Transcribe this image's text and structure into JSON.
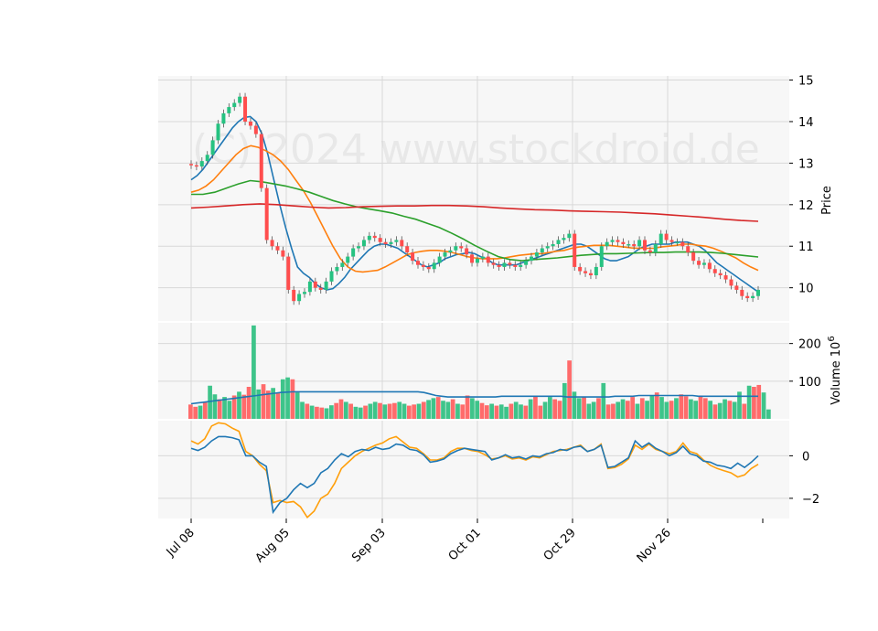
{
  "watermark": "(C) 2024 www.stockdroid.de",
  "chart_data": {
    "type": "candlestick",
    "date_ticks": [
      "Jul 08",
      "Aug 05",
      "Sep 03",
      "Oct 01",
      "Oct 29",
      "Nov 26"
    ],
    "price_panel": {
      "ylabel": "Price",
      "yticks": [
        10,
        11,
        12,
        13,
        14,
        15
      ],
      "ylim": [
        9.2,
        15.1
      ],
      "close": [
        12.95,
        12.92,
        13.05,
        13.2,
        13.55,
        13.95,
        14.2,
        14.35,
        14.45,
        14.6,
        14.0,
        13.9,
        13.7,
        12.4,
        11.15,
        11.0,
        10.9,
        10.75,
        9.95,
        9.68,
        9.85,
        9.9,
        10.15,
        10.0,
        9.95,
        10.15,
        10.4,
        10.5,
        10.6,
        10.75,
        10.95,
        11.0,
        11.15,
        11.25,
        11.2,
        11.1,
        11.05,
        11.1,
        11.15,
        11.0,
        10.85,
        10.65,
        10.55,
        10.5,
        10.45,
        10.6,
        10.75,
        10.85,
        10.9,
        11.0,
        10.95,
        10.8,
        10.6,
        10.7,
        10.75,
        10.6,
        10.55,
        10.5,
        10.6,
        10.55,
        10.5,
        10.55,
        10.65,
        10.75,
        10.85,
        10.95,
        11.0,
        11.05,
        11.15,
        11.2,
        11.3,
        10.5,
        10.4,
        10.35,
        10.3,
        10.5,
        11.0,
        11.1,
        11.15,
        11.1,
        11.05,
        11.05,
        11.0,
        11.15,
        10.9,
        10.85,
        11.05,
        11.3,
        11.15,
        11.1,
        11.1,
        11.0,
        10.85,
        10.65,
        10.55,
        10.6,
        10.45,
        10.35,
        10.3,
        10.2,
        10.05,
        9.95,
        9.8,
        9.75,
        9.8,
        9.95
      ],
      "overlays": [
        {
          "color": "#1f77b4",
          "values": [
            12.6,
            12.7,
            12.85,
            13.05,
            13.25,
            13.45,
            13.65,
            13.85,
            14.0,
            14.1,
            14.12,
            14.0,
            13.7,
            13.2,
            12.6,
            12.0,
            11.45,
            10.95,
            10.5,
            10.35,
            10.25,
            10.1,
            10.0,
            9.95,
            9.98,
            10.1,
            10.25,
            10.45,
            10.6,
            10.75,
            10.9,
            11.0,
            11.05,
            11.05,
            11.0,
            10.95,
            10.85,
            10.75,
            10.65,
            10.55,
            10.5,
            10.55,
            10.6,
            10.7,
            10.75,
            10.8,
            10.82,
            10.85,
            10.82,
            10.75,
            10.7,
            10.6,
            10.55,
            10.55,
            10.55,
            10.55,
            10.6,
            10.65,
            10.7,
            10.75,
            10.8,
            10.85,
            10.9,
            10.95,
            11.0,
            11.05,
            11.05,
            11.0,
            10.9,
            10.8,
            10.7,
            10.65,
            10.65,
            10.7,
            10.75,
            10.85,
            10.95,
            11.0,
            11.05,
            11.05,
            11.05,
            11.05,
            11.1,
            11.1,
            11.1,
            11.05,
            11.0,
            10.9,
            10.75,
            10.6,
            10.5,
            10.4,
            10.3,
            10.2,
            10.1,
            10.0,
            9.9
          ]
        },
        {
          "color": "#ff7f0e",
          "values": [
            12.3,
            12.35,
            12.45,
            12.6,
            12.8,
            13.0,
            13.2,
            13.35,
            13.42,
            13.38,
            13.3,
            13.2,
            13.05,
            12.85,
            12.6,
            12.35,
            12.05,
            11.7,
            11.35,
            11.0,
            10.7,
            10.5,
            10.4,
            10.38,
            10.4,
            10.42,
            10.5,
            10.6,
            10.7,
            10.8,
            10.85,
            10.88,
            10.9,
            10.9,
            10.88,
            10.85,
            10.8,
            10.75,
            10.72,
            10.7,
            10.7,
            10.7,
            10.72,
            10.75,
            10.78,
            10.8,
            10.82,
            10.82,
            10.85,
            10.88,
            10.9,
            10.95,
            10.98,
            11.0,
            11.02,
            11.02,
            11.02,
            11.0,
            10.98,
            10.96,
            10.95,
            10.95,
            10.95,
            10.98,
            11.0,
            11.02,
            11.05,
            11.05,
            11.02,
            11.0,
            10.95,
            10.88,
            10.8,
            10.72,
            10.6,
            10.5,
            10.42
          ]
        },
        {
          "color": "#2ca02c",
          "values": [
            12.25,
            12.25,
            12.3,
            12.4,
            12.5,
            12.58,
            12.55,
            12.5,
            12.45,
            12.38,
            12.3,
            12.2,
            12.1,
            12.02,
            11.95,
            11.9,
            11.85,
            11.8,
            11.72,
            11.65,
            11.55,
            11.45,
            11.32,
            11.18,
            11.02,
            10.88,
            10.75,
            10.68,
            10.65,
            10.68,
            10.7,
            10.72,
            10.75,
            10.78,
            10.8,
            10.82,
            10.82,
            10.83,
            10.84,
            10.85,
            10.85,
            10.86,
            10.86,
            10.86,
            10.85,
            10.83,
            10.8,
            10.77,
            10.74
          ]
        },
        {
          "color": "#d62728",
          "values": [
            11.92,
            11.94,
            11.97,
            12.0,
            12.02,
            12.0,
            11.97,
            11.94,
            11.92,
            11.93,
            11.95,
            11.96,
            11.97,
            11.97,
            11.98,
            11.98,
            11.97,
            11.95,
            11.92,
            11.9,
            11.88,
            11.87,
            11.85,
            11.84,
            11.83,
            11.82,
            11.8,
            11.78,
            11.75,
            11.72,
            11.69,
            11.65,
            11.62,
            11.6
          ]
        }
      ]
    },
    "volume_panel": {
      "ylabel": "Volume  10^6",
      "yticks": [
        100,
        200
      ],
      "ylim": [
        0,
        255
      ],
      "values": [
        38,
        32,
        35,
        45,
        88,
        65,
        52,
        58,
        48,
        62,
        72,
        64,
        85,
        248,
        78,
        92,
        75,
        82,
        70,
        105,
        110,
        105,
        70,
        45,
        40,
        35,
        32,
        30,
        28,
        36,
        42,
        52,
        45,
        40,
        32,
        30,
        35,
        40,
        45,
        42,
        38,
        40,
        42,
        45,
        40,
        35,
        38,
        40,
        45,
        50,
        55,
        58,
        48,
        45,
        52,
        40,
        38,
        62,
        55,
        48,
        42,
        36,
        40,
        35,
        38,
        32,
        40,
        45,
        38,
        35,
        52,
        60,
        35,
        45,
        58,
        52,
        48,
        95,
        155,
        72,
        55,
        58,
        40,
        45,
        55,
        95,
        38,
        40,
        45,
        52,
        48,
        58,
        40,
        55,
        48,
        62,
        70,
        58,
        45,
        48,
        55,
        65,
        60,
        52,
        48,
        62,
        55,
        48,
        38,
        42,
        52,
        48,
        45,
        72,
        40,
        88,
        85,
        90,
        70,
        25
      ],
      "ma_values": [
        40,
        42,
        44,
        46,
        48,
        50,
        52,
        54,
        56,
        58,
        60,
        62,
        64,
        66,
        68,
        70,
        71,
        72,
        72,
        72,
        72,
        72,
        72,
        72,
        72,
        72,
        72,
        72,
        72,
        72,
        72,
        72,
        72,
        72,
        72,
        72,
        72,
        72,
        72,
        70,
        66,
        62,
        60,
        58,
        58,
        58,
        58,
        58,
        58,
        58,
        58,
        58,
        60,
        60,
        60,
        60,
        60,
        60,
        60,
        60,
        60,
        60,
        60,
        58,
        58,
        58,
        58,
        58,
        58,
        58,
        58,
        60,
        60,
        60,
        60,
        62,
        62,
        62,
        62,
        62,
        62,
        62,
        62,
        62,
        62,
        60,
        60,
        60,
        60,
        60,
        60,
        60,
        60,
        60,
        60,
        60
      ]
    },
    "indicator_panel": {
      "yticks": [
        -2,
        0
      ],
      "ylim": [
        -2.95,
        1.65
      ],
      "series": [
        {
          "color": "#1f77b4",
          "values": [
            0.35,
            0.25,
            0.4,
            0.7,
            0.9,
            0.9,
            0.85,
            0.75,
            0.0,
            0.0,
            -0.3,
            -0.5,
            -2.65,
            -2.2,
            -2.0,
            -1.6,
            -1.3,
            -1.5,
            -1.3,
            -0.8,
            -0.6,
            -0.2,
            0.1,
            -0.05,
            0.2,
            0.3,
            0.25,
            0.4,
            0.3,
            0.35,
            0.55,
            0.5,
            0.3,
            0.25,
            0.05,
            -0.3,
            -0.25,
            -0.15,
            0.1,
            0.25,
            0.35,
            0.3,
            0.25,
            0.2,
            -0.2,
            -0.1,
            0.05,
            -0.1,
            -0.05,
            -0.15,
            0.0,
            -0.05,
            0.1,
            0.15,
            0.3,
            0.25,
            0.4,
            0.45,
            0.2,
            0.3,
            0.5,
            -0.55,
            -0.5,
            -0.3,
            -0.1,
            0.7,
            0.4,
            0.6,
            0.35,
            0.2,
            0.0,
            0.15,
            0.45,
            0.1,
            0.0,
            -0.25,
            -0.3,
            -0.45,
            -0.5,
            -0.6,
            -0.35,
            -0.55,
            -0.3,
            0.0
          ]
        },
        {
          "color": "#ff9f0a",
          "values": [
            0.7,
            0.55,
            0.8,
            1.4,
            1.55,
            1.5,
            1.3,
            1.15,
            0.2,
            0.0,
            -0.4,
            -0.7,
            -2.2,
            -2.1,
            -2.2,
            -2.15,
            -2.4,
            -2.9,
            -2.6,
            -2.0,
            -1.8,
            -1.3,
            -0.6,
            -0.3,
            0.0,
            0.2,
            0.35,
            0.5,
            0.6,
            0.8,
            0.9,
            0.65,
            0.4,
            0.35,
            0.1,
            -0.2,
            -0.2,
            -0.1,
            0.2,
            0.35,
            0.35,
            0.25,
            0.2,
            0.05,
            -0.15,
            -0.1,
            0.0,
            -0.15,
            -0.1,
            -0.2,
            -0.05,
            -0.1,
            0.05,
            0.2,
            0.25,
            0.3,
            0.4,
            0.5,
            0.2,
            0.3,
            0.55,
            -0.6,
            -0.55,
            -0.4,
            -0.15,
            0.5,
            0.3,
            0.55,
            0.3,
            0.2,
            0.1,
            0.2,
            0.6,
            0.2,
            0.1,
            -0.2,
            -0.45,
            -0.6,
            -0.7,
            -0.8,
            -1.0,
            -0.9,
            -0.6,
            -0.4
          ]
        }
      ]
    }
  }
}
